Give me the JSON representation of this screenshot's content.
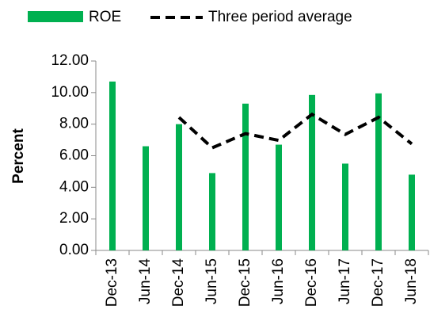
{
  "chart_data": {
    "type": "bar",
    "categories": [
      "Dec-13",
      "Jun-14",
      "Dec-14",
      "Jun-15",
      "Dec-15",
      "Jun-16",
      "Dec-16",
      "Jun-17",
      "Dec-17",
      "Jun-18"
    ],
    "series": [
      {
        "name": "ROE",
        "color": "#00b050",
        "type": "bar",
        "values": [
          10.7,
          6.6,
          8.0,
          4.9,
          9.3,
          6.7,
          9.85,
          5.5,
          9.95,
          4.8
        ]
      },
      {
        "name": "Three period average",
        "color": "#000000",
        "type": "line",
        "values": [
          null,
          null,
          8.43,
          6.5,
          7.4,
          6.97,
          8.62,
          7.35,
          8.43,
          6.75
        ]
      }
    ],
    "y_label": "Percent",
    "ylim": [
      0,
      12
    ],
    "yticks": [
      {
        "value": 0,
        "label": "0.00"
      },
      {
        "value": 2,
        "label": "2.00"
      },
      {
        "value": 4,
        "label": "4.00"
      },
      {
        "value": 6,
        "label": "6.00"
      },
      {
        "value": 8,
        "label": "8.00"
      },
      {
        "value": 10,
        "label": "10.00"
      },
      {
        "value": 12,
        "label": "12.00"
      }
    ],
    "legend": "top"
  }
}
